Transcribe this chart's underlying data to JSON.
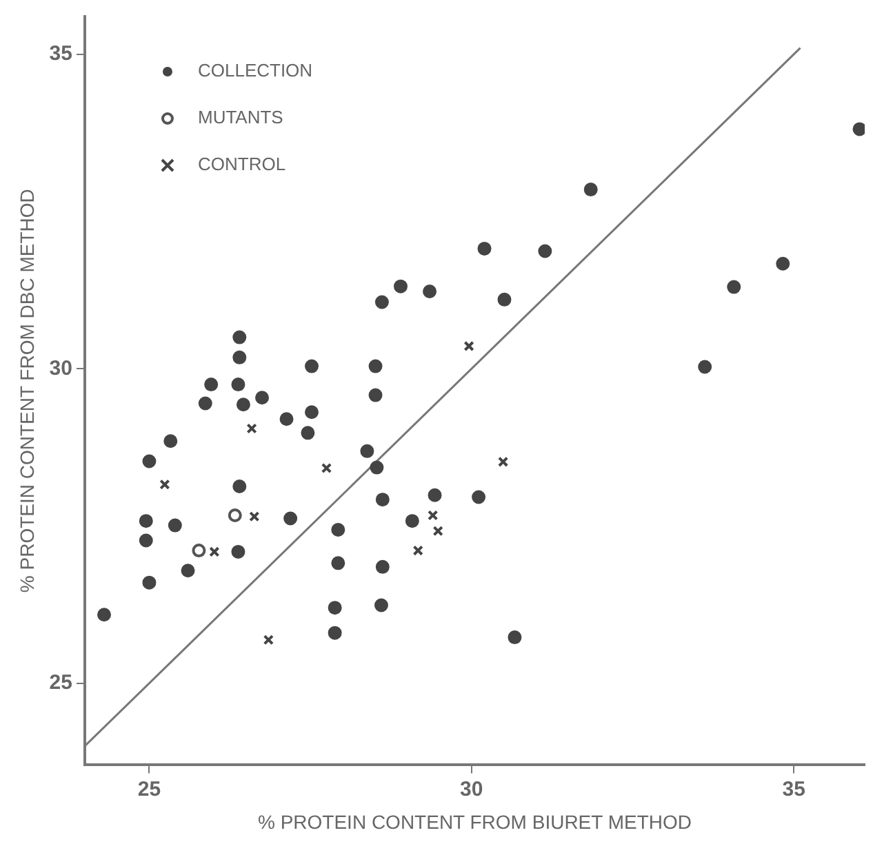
{
  "chart_data": {
    "type": "scatter",
    "xlabel": "% PROTEIN CONTENT FROM BIURET METHOD",
    "ylabel": "% PROTEIN CONTENT FROM DBC METHOD",
    "xlim": [
      24,
      36.1
    ],
    "ylim": [
      23.7,
      35.6
    ],
    "xticks": [
      25,
      30,
      35
    ],
    "yticks": [
      25,
      30,
      35
    ],
    "grid": false,
    "legend": "top left",
    "series": [
      {
        "name": "COLLECTION",
        "color": "#444444",
        "marker": "circle",
        "x": [
          28.9,
          28.61,
          29.35,
          26.4,
          26.4,
          27.52,
          28.51,
          25.96,
          26.38,
          26.75,
          28.51,
          25.87,
          26.46,
          27.13,
          27.52,
          27.46,
          25.33,
          25.0,
          28.38,
          28.53,
          26.4,
          28.62,
          29.43,
          29.08,
          27.19,
          24.95,
          25.4,
          24.95,
          27.93,
          26.38,
          25.6,
          27.93,
          28.62,
          25.0,
          24.3,
          27.88,
          28.6,
          27.88,
          31.85,
          36.02,
          30.2,
          31.14,
          30.51,
          34.83,
          34.07,
          33.62,
          30.11,
          30.67
        ],
        "values": [
          31.31,
          31.06,
          31.23,
          30.5,
          30.18,
          30.04,
          30.04,
          29.75,
          29.75,
          29.54,
          29.58,
          29.45,
          29.43,
          29.2,
          29.31,
          28.98,
          28.85,
          28.53,
          28.69,
          28.43,
          28.13,
          27.92,
          27.99,
          27.58,
          27.62,
          27.58,
          27.51,
          27.27,
          27.44,
          27.09,
          26.79,
          26.91,
          26.85,
          26.6,
          26.09,
          26.2,
          26.24,
          25.8,
          32.85,
          33.81,
          31.91,
          31.87,
          31.1,
          31.67,
          31.3,
          30.03,
          27.96,
          25.73
        ]
      },
      {
        "name": "MUTANTS",
        "color": "#555555",
        "marker": "open_circle",
        "x": [
          26.33,
          25.77
        ],
        "values": [
          27.67,
          27.11
        ]
      },
      {
        "name": "CONTROL",
        "color": "#444444",
        "marker": "cross",
        "x": [
          26.59,
          27.75,
          25.24,
          29.4,
          29.48,
          26.63,
          26.01,
          29.17,
          26.85,
          29.96,
          30.49
        ],
        "values": [
          29.05,
          28.42,
          28.16,
          27.67,
          27.42,
          27.65,
          27.09,
          27.11,
          25.69,
          30.36,
          28.52
        ]
      },
      {
        "type": "line",
        "color": "#777777",
        "marker": "none",
        "x": [
          24,
          35.1
        ],
        "values": [
          24,
          35.1
        ]
      }
    ]
  }
}
